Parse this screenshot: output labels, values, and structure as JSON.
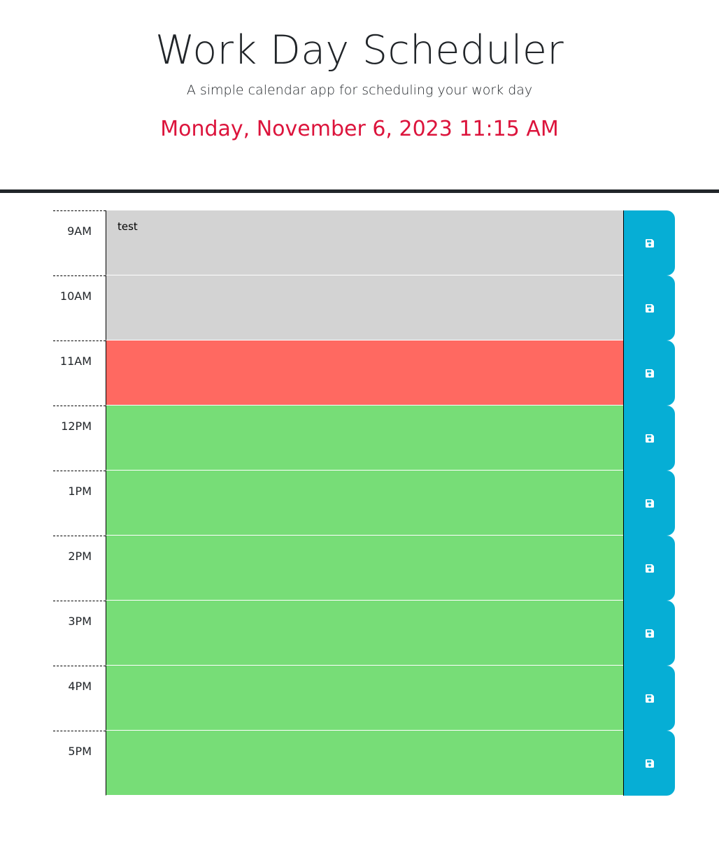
{
  "header": {
    "title": "Work Day Scheduler",
    "subtitle": "A simple calendar app for scheduling your work day",
    "current_day": "Monday, November 6, 2023 11:15 AM"
  },
  "colors": {
    "past": "#d3d3d3",
    "present": "#ff6961",
    "future": "#77dd77",
    "save_button": "#06aed5",
    "current_day": "#dc143c"
  },
  "time_blocks": [
    {
      "hour": "9AM",
      "text": "test",
      "status": "past",
      "save_icon": "floppy-disk-icon"
    },
    {
      "hour": "10AM",
      "text": "",
      "status": "past",
      "save_icon": "floppy-disk-icon"
    },
    {
      "hour": "11AM",
      "text": "",
      "status": "present",
      "save_icon": "floppy-disk-icon"
    },
    {
      "hour": "12PM",
      "text": "",
      "status": "future",
      "save_icon": "floppy-disk-icon"
    },
    {
      "hour": "1PM",
      "text": "",
      "status": "future",
      "save_icon": "floppy-disk-icon"
    },
    {
      "hour": "2PM",
      "text": "",
      "status": "future",
      "save_icon": "floppy-disk-icon"
    },
    {
      "hour": "3PM",
      "text": "",
      "status": "future",
      "save_icon": "floppy-disk-icon"
    },
    {
      "hour": "4PM",
      "text": "",
      "status": "future",
      "save_icon": "floppy-disk-icon"
    },
    {
      "hour": "5PM",
      "text": "",
      "status": "future",
      "save_icon": "floppy-disk-icon"
    }
  ]
}
